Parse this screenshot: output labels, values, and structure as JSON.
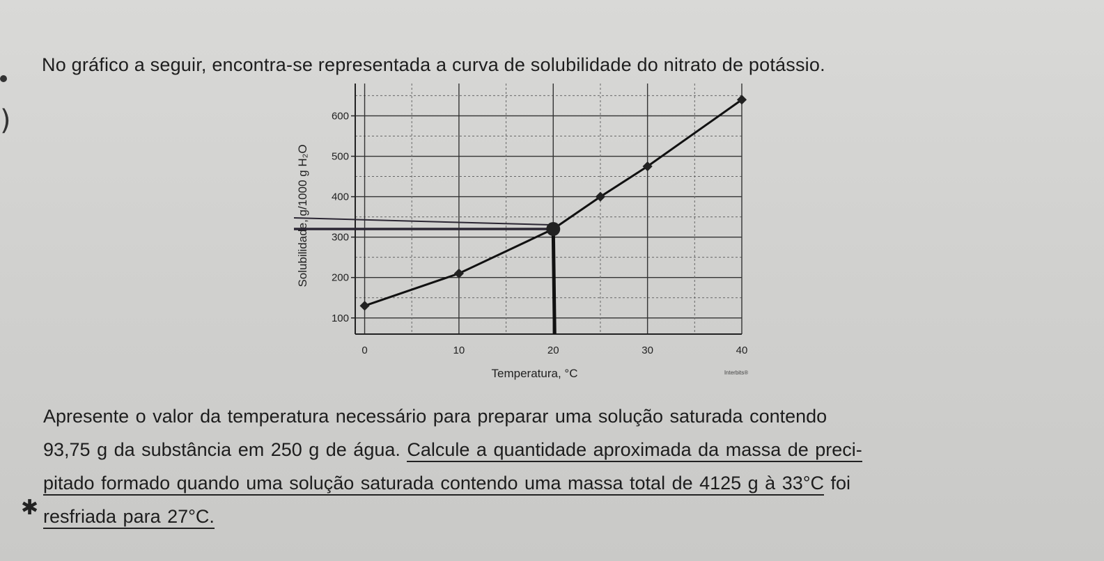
{
  "intro_text": "No gráfico a seguir, encontra-se representada a curva de solubilidade do nitrato de potássio.",
  "chart_data": {
    "type": "line",
    "xlabel": "Temperatura, °C",
    "ylabel": "Solubilidade, g/1000 g H₂O",
    "xlim": [
      0,
      40
    ],
    "ylim": [
      100,
      600
    ],
    "x_ticks": [
      "0",
      "10",
      "20",
      "30",
      "40"
    ],
    "y_ticks": [
      "100",
      "200",
      "300",
      "400",
      "500",
      "600"
    ],
    "grid": true,
    "series": [
      {
        "x": [
          0,
          10,
          20,
          25,
          30,
          40
        ],
        "y": [
          130,
          210,
          320,
          400,
          475,
          640
        ]
      }
    ],
    "annotation": {
      "x": 20,
      "y": 320
    },
    "credit": "Interbits®"
  },
  "question": {
    "line1": "Apresente o valor da temperatura necessário para preparar uma solução saturada contendo",
    "line2_a": "93,75 g da substância em 250 g de água. ",
    "line2_b": "Calcule a quantidade aproximada da massa de preci-",
    "line3_a": "pitado formado quando uma solução saturada contendo uma massa total de 4125 g à 33°C",
    "line3_b": " foi",
    "line4": "resfriada para 27°C."
  },
  "star_mark": "✱"
}
